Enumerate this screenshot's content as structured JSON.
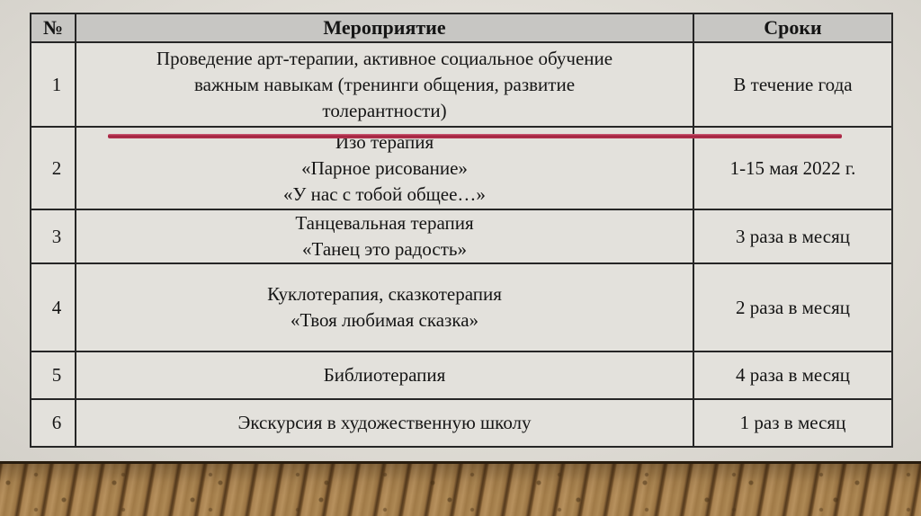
{
  "slide": {
    "type": "presentation-slide",
    "accent_red": "#b03048",
    "wood_brown": "#a98250",
    "slide_background": "#dedbd4",
    "cell_background": "#e3e1dc",
    "header_background": "#c7c6c3"
  },
  "table": {
    "headers": {
      "num": "№",
      "event": "Мероприятие",
      "timing": "Сроки"
    },
    "rows": [
      {
        "num": "1",
        "event_lines": [
          "Проведение арт-терапии, активное социальное обучение",
          "важным навыкам (тренинги общения, развитие",
          "толерантности)"
        ],
        "timing": "В течение года"
      },
      {
        "num": "2",
        "event_lines": [
          "Изо терапия",
          "«Парное рисование»",
          "«У нас с тобой общее…»"
        ],
        "timing": "1-15 мая 2022 г.",
        "annotation": "red-strikethrough-over-first-line"
      },
      {
        "num": "3",
        "event_lines": [
          "Танцевальная терапия",
          "«Танец это радость»"
        ],
        "timing": "3 раза в месяц"
      },
      {
        "num": "4",
        "event_lines": [
          "Куклотерапия, сказкотерапия",
          "«Твоя любимая сказка»"
        ],
        "timing": "2 раза в месяц"
      },
      {
        "num": "5",
        "event_lines": [
          "Библиотерапия"
        ],
        "timing": "4 раза в месяц"
      },
      {
        "num": "6",
        "event_lines": [
          "Экскурсия в художественную школу"
        ],
        "timing": "1 раз в месяц"
      }
    ]
  }
}
